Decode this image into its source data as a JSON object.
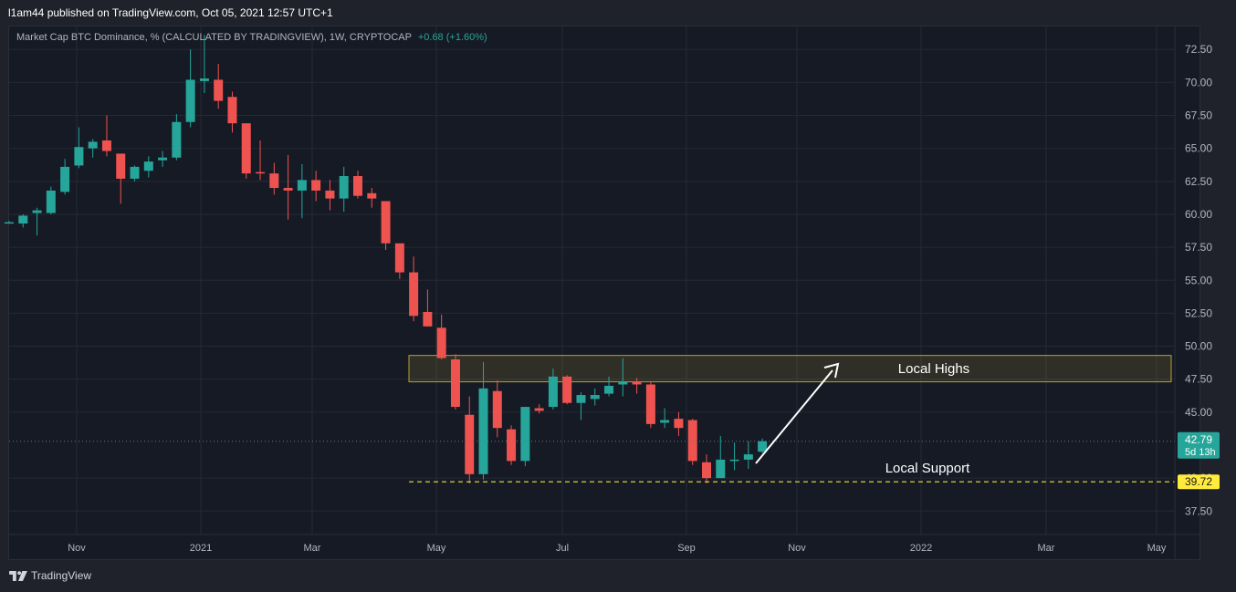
{
  "header": {
    "publisher_line": "l1am44 published on TradingView.com, Oct 05, 2021 12:57 UTC+1"
  },
  "legend": {
    "symbol_text": "Market Cap BTC Dominance, % (CALCULATED BY TRADINGVIEW), 1W, CRYPTOCAP",
    "change_text": "+0.68 (+1.60%)"
  },
  "footer": {
    "brand": "TradingView"
  },
  "colors": {
    "up": "#26a69a",
    "down": "#ef5350",
    "zone_border": "#b8a030",
    "support_line": "#f0e040",
    "price_label_bg": "#26a69a",
    "support_label_bg": "#ffeb3b"
  },
  "chart_data": {
    "type": "candlestick",
    "timeframe": "1W",
    "ylim": [
      36,
      74
    ],
    "y_ticks": [
      "37.50",
      "40.00",
      "45.00",
      "47.50",
      "50.00",
      "52.50",
      "55.00",
      "57.50",
      "60.00",
      "62.50",
      "65.00",
      "67.50",
      "70.00",
      "72.50"
    ],
    "x_ticks": [
      "Nov",
      "2021",
      "Mar",
      "May",
      "Jul",
      "Sep",
      "Nov",
      "2022",
      "Mar",
      "May"
    ],
    "candles": [
      {
        "o": 59.4,
        "h": 59.5,
        "l": 59.3,
        "c": 59.4
      },
      {
        "o": 59.3,
        "h": 60.0,
        "l": 59.0,
        "c": 59.9
      },
      {
        "o": 60.1,
        "h": 60.5,
        "l": 58.4,
        "c": 60.3
      },
      {
        "o": 60.1,
        "h": 62.1,
        "l": 60.0,
        "c": 61.8
      },
      {
        "o": 61.7,
        "h": 64.2,
        "l": 61.5,
        "c": 63.6
      },
      {
        "o": 63.7,
        "h": 66.6,
        "l": 63.5,
        "c": 65.1
      },
      {
        "o": 65.0,
        "h": 65.7,
        "l": 64.3,
        "c": 65.5
      },
      {
        "o": 65.6,
        "h": 67.5,
        "l": 64.4,
        "c": 64.8
      },
      {
        "o": 64.6,
        "h": 64.6,
        "l": 60.8,
        "c": 62.7
      },
      {
        "o": 62.7,
        "h": 63.7,
        "l": 62.5,
        "c": 63.6
      },
      {
        "o": 63.3,
        "h": 64.4,
        "l": 62.8,
        "c": 64.0
      },
      {
        "o": 64.1,
        "h": 64.8,
        "l": 63.6,
        "c": 64.3
      },
      {
        "o": 64.3,
        "h": 67.6,
        "l": 64.1,
        "c": 67.0
      },
      {
        "o": 67.0,
        "h": 72.5,
        "l": 66.6,
        "c": 70.2
      },
      {
        "o": 70.1,
        "h": 73.6,
        "l": 69.2,
        "c": 70.3
      },
      {
        "o": 70.2,
        "h": 71.4,
        "l": 68.0,
        "c": 68.6
      },
      {
        "o": 68.9,
        "h": 69.3,
        "l": 66.2,
        "c": 66.9
      },
      {
        "o": 66.9,
        "h": 66.9,
        "l": 62.7,
        "c": 63.1
      },
      {
        "o": 63.2,
        "h": 65.6,
        "l": 62.6,
        "c": 63.1
      },
      {
        "o": 63.1,
        "h": 63.9,
        "l": 61.5,
        "c": 62.0
      },
      {
        "o": 62.0,
        "h": 64.5,
        "l": 59.6,
        "c": 61.8
      },
      {
        "o": 61.8,
        "h": 63.8,
        "l": 59.7,
        "c": 62.6
      },
      {
        "o": 62.6,
        "h": 63.3,
        "l": 61.0,
        "c": 61.8
      },
      {
        "o": 61.8,
        "h": 62.6,
        "l": 60.3,
        "c": 61.2
      },
      {
        "o": 61.2,
        "h": 63.6,
        "l": 60.2,
        "c": 62.9
      },
      {
        "o": 62.9,
        "h": 63.3,
        "l": 61.2,
        "c": 61.4
      },
      {
        "o": 61.6,
        "h": 62.0,
        "l": 60.5,
        "c": 61.2
      },
      {
        "o": 61.0,
        "h": 61.0,
        "l": 57.3,
        "c": 57.8
      },
      {
        "o": 57.8,
        "h": 57.8,
        "l": 55.1,
        "c": 55.6
      },
      {
        "o": 55.6,
        "h": 56.8,
        "l": 51.9,
        "c": 52.3
      },
      {
        "o": 52.6,
        "h": 54.3,
        "l": 51.5,
        "c": 51.5
      },
      {
        "o": 51.4,
        "h": 52.4,
        "l": 49.0,
        "c": 49.1
      },
      {
        "o": 49.0,
        "h": 49.4,
        "l": 45.2,
        "c": 45.4
      },
      {
        "o": 44.8,
        "h": 46.2,
        "l": 39.6,
        "c": 40.3
      },
      {
        "o": 40.3,
        "h": 48.8,
        "l": 39.9,
        "c": 46.8
      },
      {
        "o": 46.6,
        "h": 47.4,
        "l": 43.1,
        "c": 43.8
      },
      {
        "o": 43.7,
        "h": 44.0,
        "l": 41.0,
        "c": 41.3
      },
      {
        "o": 41.3,
        "h": 45.4,
        "l": 40.9,
        "c": 45.4
      },
      {
        "o": 45.3,
        "h": 45.6,
        "l": 44.9,
        "c": 45.1
      },
      {
        "o": 45.4,
        "h": 48.3,
        "l": 45.2,
        "c": 47.7
      },
      {
        "o": 47.7,
        "h": 47.8,
        "l": 45.6,
        "c": 45.7
      },
      {
        "o": 45.7,
        "h": 46.5,
        "l": 44.4,
        "c": 46.3
      },
      {
        "o": 46.0,
        "h": 46.8,
        "l": 45.5,
        "c": 46.3
      },
      {
        "o": 46.4,
        "h": 47.7,
        "l": 46.2,
        "c": 47.0
      },
      {
        "o": 47.1,
        "h": 49.1,
        "l": 46.2,
        "c": 47.3
      },
      {
        "o": 47.3,
        "h": 47.6,
        "l": 46.4,
        "c": 47.1
      },
      {
        "o": 47.1,
        "h": 47.3,
        "l": 43.8,
        "c": 44.1
      },
      {
        "o": 44.2,
        "h": 45.3,
        "l": 43.8,
        "c": 44.4
      },
      {
        "o": 44.5,
        "h": 45.0,
        "l": 43.2,
        "c": 43.8
      },
      {
        "o": 44.4,
        "h": 44.5,
        "l": 41.0,
        "c": 41.3
      },
      {
        "o": 41.2,
        "h": 41.8,
        "l": 39.6,
        "c": 40.0
      },
      {
        "o": 40.0,
        "h": 43.2,
        "l": 40.0,
        "c": 41.4
      },
      {
        "o": 41.3,
        "h": 42.7,
        "l": 40.6,
        "c": 41.4
      },
      {
        "o": 41.4,
        "h": 42.8,
        "l": 40.7,
        "c": 41.8
      },
      {
        "o": 42.0,
        "h": 43.0,
        "l": 41.9,
        "c": 42.8
      }
    ],
    "current_price": "42.79",
    "countdown": "5d 13h",
    "support_level": "39.72",
    "annotations": {
      "zone_label": "Local Highs",
      "support_label": "Local Support"
    }
  }
}
